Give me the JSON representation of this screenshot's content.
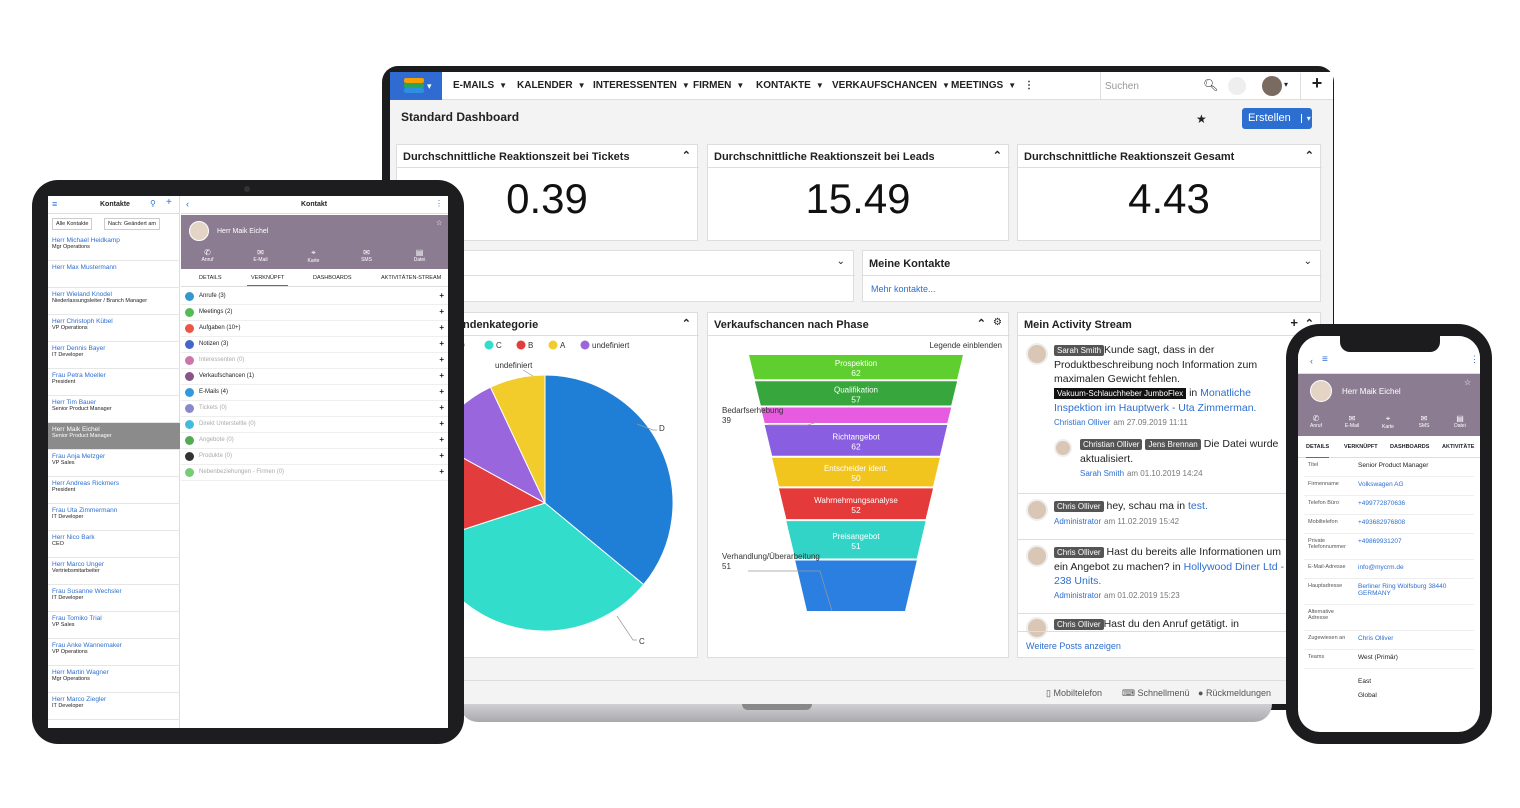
{
  "nav": {
    "items": [
      "E-MAILS",
      "KALENDER",
      "INTERESSENTEN",
      "FIRMEN",
      "KONTAKTE",
      "VERKAUFSCHANCEN",
      "MEETINGS"
    ],
    "search_placeholder": "Suchen"
  },
  "dashboard": {
    "title": "Standard Dashboard",
    "create_label": "Erstellen",
    "kpis": [
      {
        "title": "Durchschnittliche Reaktionszeit bei Tickets",
        "value": "0.39"
      },
      {
        "title": "Durchschnittliche Reaktionszeit bei Leads",
        "value": "15.49"
      },
      {
        "title": "Durchschnittliche Reaktionszeit Gesamt",
        "value": "4.43"
      }
    ],
    "partial_panel_title": "n",
    "contacts_panel": {
      "title": "Meine Kontakte",
      "more_link": "Mehr kontakte..."
    },
    "pie_panel": {
      "title": "ndenkategorie",
      "legend": [
        "D",
        "C",
        "B",
        "A",
        "undefiniert"
      ],
      "labels": {
        "d": "D",
        "c": "C",
        "undef": "undefiniert"
      }
    },
    "funnel_panel": {
      "title": "Verkaufschancen nach Phase",
      "legend_toggle": "Legende einblenden",
      "side_labels": [
        {
          "name": "Bedarfserhebung",
          "value": "39"
        },
        {
          "name": "Verhandlung/Überarbeitung",
          "value": "51"
        }
      ]
    },
    "activity": {
      "title": "Mein Activity Stream",
      "more": "Weitere Posts anzeigen",
      "p1": {
        "user": "Sarah Smith",
        "text": "Kunde sagt, dass in der Produktbeschreibung noch Information zum maximalen Gewicht fehlen.",
        "product": "Vakuum-Schlauchheber JumboFlex",
        "in": "in",
        "link": "Monatliche Inspektion im Hauptwerk - Uta Zimmerman.",
        "author": "Christian Olliver",
        "date": "am 27.09.2019 11:11"
      },
      "p2": {
        "user1": "Christian Olliver",
        "user2": "Jens Brennan",
        "text": "Die Datei wurde aktualisiert.",
        "author": "Sarah Smith",
        "date": "am 01.10.2019 14:24"
      },
      "p3": {
        "user": "Chris Olliver",
        "text": "hey, schau ma in",
        "link": "test.",
        "author": "Administrator",
        "date": "am 11.02.2019 15:42"
      },
      "p4": {
        "user": "Chris Olliver",
        "text": "Hast du bereits alle Informationen um ein Angebot zu machen? in",
        "link": "Hollywood Diner Ltd - 238 Units.",
        "author": "Administrator",
        "date": "am 01.02.2019 15:23"
      },
      "p5": {
        "user": "Chris Olliver",
        "text": "Hast du den Anruf getätigt. in"
      }
    },
    "footer": {
      "mobile": "Mobiltelefon",
      "quick": "Schnellmenü",
      "feedback": "Rückmeldungen"
    }
  },
  "chart_data": [
    {
      "type": "pie",
      "title": "ndenkategorie",
      "categories": [
        "D",
        "C",
        "B",
        "undefiniert",
        "A"
      ],
      "values": [
        36,
        34,
        13,
        10,
        7
      ],
      "colors": [
        "#1f7fd6",
        "#33ddcc",
        "#e33c3c",
        "#9966dd",
        "#f2cc2a"
      ]
    },
    {
      "type": "bar",
      "title": "Verkaufschancen nach Phase",
      "categories": [
        "Prospektion",
        "Qualifikation",
        "Bedarfserhebung",
        "Richtangebot",
        "Entscheider ident.",
        "Wahrnehmungsanalyse",
        "Preisangebot",
        "Verhandlung/Überarbeitung"
      ],
      "values": [
        62,
        57,
        39,
        62,
        50,
        52,
        51,
        51
      ],
      "colors": [
        "#5fcf2f",
        "#37a63c",
        "#e65be0",
        "#8a5ee0",
        "#f1c41e",
        "#e53a3a",
        "#33d4c8",
        "#2a7fe0"
      ]
    }
  ],
  "tablet": {
    "list_title": "Kontakte",
    "filter1": "Alle Kontakte",
    "filter2": "Nach: Geändert am",
    "detail_title": "Kontakt",
    "person": "Herr Maik Eichel",
    "actions": [
      "Anruf",
      "E-Mail",
      "Karte",
      "SMS",
      "Datei"
    ],
    "tabs": [
      "DETAILS",
      "VERKNÜPFT",
      "DASHBOARDS",
      "AKTIVITÄTEN-STREAM"
    ],
    "contacts": [
      {
        "name": "Herr Michael Heidkamp",
        "role": "Mgr Operations"
      },
      {
        "name": "Herr Max Mustermann",
        "role": ""
      },
      {
        "name": "Herr Wieland Knodel",
        "role": "Niederlassungsleiter / Branch Manager"
      },
      {
        "name": "Herr Christoph Kübel",
        "role": "VP Operations"
      },
      {
        "name": "Herr Dennis Bayer",
        "role": "IT Developer"
      },
      {
        "name": "Frau Petra Moeller",
        "role": "President"
      },
      {
        "name": "Herr Tim Bauer",
        "role": "Senior Product Manager"
      },
      {
        "name": "Herr Maik Eichel",
        "role": "Senior Product Manager"
      },
      {
        "name": "Frau Anja Metzger",
        "role": "VP Sales"
      },
      {
        "name": "Herr Andreas Rickmers",
        "role": "President"
      },
      {
        "name": "Frau Uta Zimmermann",
        "role": "IT Developer"
      },
      {
        "name": "Herr Nico Bark",
        "role": "CEO"
      },
      {
        "name": "Herr Marco Unger",
        "role": "Vertriebsmitarbeiter"
      },
      {
        "name": "Frau Susanne Wechsler",
        "role": "IT Developer"
      },
      {
        "name": "Frau Tomiko Trial",
        "role": "VP Sales"
      },
      {
        "name": "Frau Anke Wannemaker",
        "role": "VP Operations"
      },
      {
        "name": "Herr Martin Wagner",
        "role": "Mgr Operations"
      },
      {
        "name": "Herr Marco Ziegler",
        "role": "IT Developer"
      }
    ],
    "subpanels": [
      {
        "label": "Anrufe (3)",
        "color": "#39c",
        "active": true
      },
      {
        "label": "Meetings (2)",
        "color": "#5b5",
        "active": true
      },
      {
        "label": "Aufgaben (10+)",
        "color": "#e54",
        "active": true
      },
      {
        "label": "Notizen (3)",
        "color": "#46c",
        "active": true
      },
      {
        "label": "Interessenten (0)",
        "color": "#c7a",
        "active": false
      },
      {
        "label": "Verkaufschancen (1)",
        "color": "#858",
        "active": true
      },
      {
        "label": "E-Mails (4)",
        "color": "#39d",
        "active": true
      },
      {
        "label": "Tickets (0)",
        "color": "#88c",
        "active": false
      },
      {
        "label": "Direkt Unterstellte (0)",
        "color": "#4bd",
        "active": false
      },
      {
        "label": "Angebote (0)",
        "color": "#5a5",
        "active": false
      },
      {
        "label": "Produkte (0)",
        "color": "#333",
        "active": false
      },
      {
        "label": "Nebenbeziehungen - Firmen (0)",
        "color": "#7c7",
        "active": false
      }
    ]
  },
  "phone": {
    "person": "Herr Maik Eichel",
    "actions": [
      "Anruf",
      "E-Mail",
      "Karte",
      "SMS",
      "Datei"
    ],
    "tabs": [
      "DETAILS",
      "VERKNÜPFT",
      "DASHBOARDS",
      "AKTIVITÄTE"
    ],
    "fields": [
      {
        "label": "Titel",
        "value": "Senior Product Manager",
        "link": false
      },
      {
        "label": "Firmenname",
        "value": "Volkswagen AG",
        "link": true
      },
      {
        "label": "Telefon Büro",
        "value": "+499772870636",
        "link": true
      },
      {
        "label": "Mobiltelefon",
        "value": "+493682976808",
        "link": true
      },
      {
        "label": "Private Telefonnummer",
        "value": "+49869931207",
        "link": true
      },
      {
        "label": "E-Mail-Adresse",
        "value": "info@mycrm.de",
        "link": true
      },
      {
        "label": "Hauptadresse",
        "value": "Berliner Ring Wolfsburg 38440 GERMANY",
        "link": true
      },
      {
        "label": "Alternative Adresse",
        "value": "",
        "link": false
      },
      {
        "label": "Zugewiesen an",
        "value": "Chris Olliver",
        "link": true
      },
      {
        "label": "Teams",
        "value": "West (Primär)",
        "link": false
      }
    ],
    "teams_extra": [
      "East",
      "Global"
    ]
  }
}
